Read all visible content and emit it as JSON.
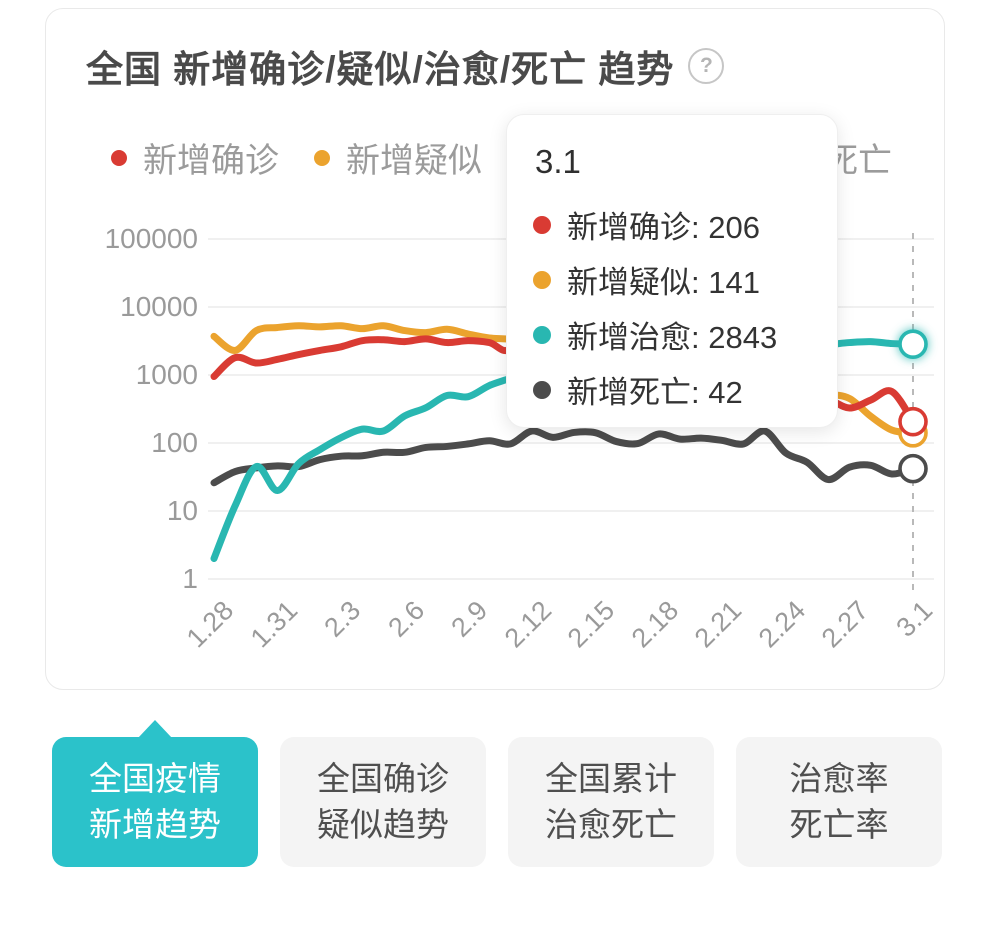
{
  "card": {
    "title": "全国 新增确诊/疑似/治愈/死亡 趋势",
    "help_icon": "?"
  },
  "legend": {
    "items": [
      {
        "key": "confirmed",
        "label": "新增确诊",
        "color": "#d93b33"
      },
      {
        "key": "suspected",
        "label": "新增疑似",
        "color": "#eba32e"
      },
      {
        "key": "cured",
        "label": "新增治愈",
        "color": "#29b7b1"
      },
      {
        "key": "deaths",
        "label": "新增死亡",
        "color": "#4c4c4c"
      }
    ]
  },
  "chart_data": {
    "type": "line",
    "y_scale": "log",
    "ylim": [
      1,
      100000
    ],
    "y_ticks": [
      1,
      10,
      100,
      1000,
      10000,
      100000
    ],
    "x": [
      "1.28",
      "1.29",
      "1.30",
      "1.31",
      "2.1",
      "2.2",
      "2.3",
      "2.4",
      "2.5",
      "2.6",
      "2.7",
      "2.8",
      "2.9",
      "2.10",
      "2.11",
      "2.12",
      "2.13",
      "2.14",
      "2.15",
      "2.16",
      "2.17",
      "2.18",
      "2.19",
      "2.20",
      "2.21",
      "2.22",
      "2.23",
      "2.24",
      "2.25",
      "2.26",
      "2.27",
      "2.28",
      "2.29",
      "3.1"
    ],
    "x_tick_labels": [
      "1.28",
      "1.31",
      "2.3",
      "2.6",
      "2.9",
      "2.12",
      "2.15",
      "2.18",
      "2.21",
      "2.24",
      "2.27",
      "3.1"
    ],
    "highlight_x": "3.1",
    "grid": true,
    "series": [
      {
        "key": "suspected",
        "name": "新增疑似",
        "color": "#eba32e",
        "values": [
          3700,
          2300,
          4500,
          5000,
          5300,
          5100,
          5300,
          4800,
          5300,
          4500,
          4200,
          4700,
          4000,
          3500,
          3342,
          2807,
          2450,
          2277,
          1918,
          1563,
          1432,
          1185,
          1277,
          1614,
          1361,
          882,
          620,
          530,
          439,
          508,
          452,
          248,
          155,
          141
        ]
      },
      {
        "key": "confirmed",
        "name": "新增确诊",
        "color": "#d93b33",
        "values": [
          950,
          1800,
          1500,
          1700,
          2000,
          2300,
          2600,
          3200,
          3300,
          3100,
          3400,
          3000,
          3200,
          3000,
          2500,
          15152,
          5090,
          2641,
          2009,
          2048,
          1886,
          1749,
          820,
          889,
          397,
          648,
          409,
          508,
          406,
          433,
          327,
          427,
          573,
          206
        ]
      },
      {
        "key": "deaths",
        "name": "新增死亡",
        "color": "#4c4c4c",
        "values": [
          26,
          38,
          43,
          46,
          45,
          57,
          64,
          65,
          73,
          73,
          86,
          89,
          97,
          108,
          97,
          150,
          121,
          143,
          142,
          105,
          98,
          136,
          114,
          118,
          109,
          97,
          150,
          71,
          52,
          29,
          44,
          47,
          35,
          42
        ]
      },
      {
        "key": "cured",
        "name": "新增治愈",
        "color": "#29b7b1",
        "glow": true,
        "values": [
          2,
          12,
          45,
          20,
          50,
          80,
          120,
          160,
          150,
          250,
          330,
          500,
          480,
          700,
          900,
          1200,
          1100,
          1400,
          1300,
          1600,
          1800,
          2000,
          2100,
          2200,
          2400,
          2500,
          2600,
          2600,
          2700,
          2800,
          3000,
          3100,
          2900,
          2843
        ]
      }
    ]
  },
  "tooltip": {
    "title": "3.1",
    "rows": [
      {
        "key": "confirmed",
        "label": "新增确诊",
        "value": "206",
        "color": "#d93b33"
      },
      {
        "key": "suspected",
        "label": "新增疑似",
        "value": "141",
        "color": "#eba32e"
      },
      {
        "key": "cured",
        "label": "新增治愈",
        "value": "2843",
        "color": "#29b7b1"
      },
      {
        "key": "deaths",
        "label": "新增死亡",
        "value": "42",
        "color": "#4c4c4c"
      }
    ]
  },
  "tabs": {
    "active_index": 0,
    "active_color": "#2bc2ca",
    "items": [
      {
        "key": "national-new-trend",
        "label": "全国疫情\n新增趋势"
      },
      {
        "key": "national-confirm-suspect",
        "label": "全国确诊\n疑似趋势"
      },
      {
        "key": "national-total-cure-death",
        "label": "全国累计\n治愈死亡"
      },
      {
        "key": "cure-death-rate",
        "label": "治愈率\n死亡率"
      }
    ]
  }
}
